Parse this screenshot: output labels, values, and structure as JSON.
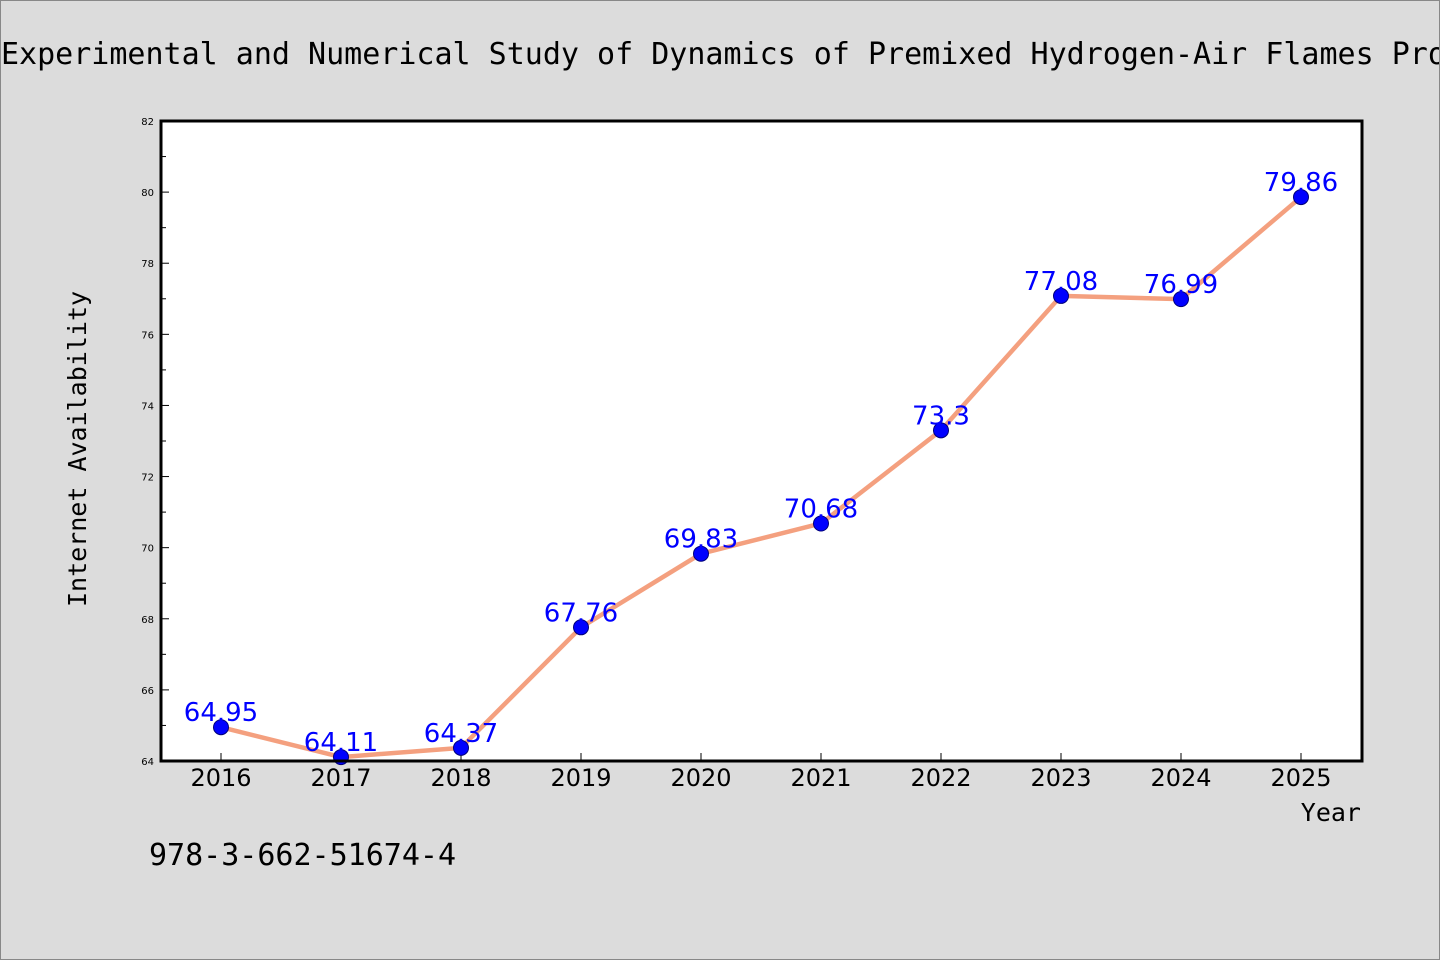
{
  "chart_data": {
    "type": "line",
    "title": "Experimental and Numerical Study of Dynamics of Premixed Hydrogen-Air Flames Propagating in Ducts",
    "xlabel": "Year",
    "ylabel": "Internet Availability",
    "categories": [
      "2016",
      "2017",
      "2018",
      "2019",
      "2020",
      "2021",
      "2022",
      "2023",
      "2024",
      "2025"
    ],
    "series": [
      {
        "values": [
          64.95,
          64.11,
          64.37,
          67.76,
          69.83,
          70.68,
          73.3,
          77.08,
          76.99,
          79.86
        ],
        "labels": [
          "64.95",
          "64.11",
          "64.37",
          "67.76",
          "69.83",
          "70.68",
          "73.3",
          "77.08",
          "76.99",
          "79.86"
        ]
      }
    ],
    "ylim": [
      64,
      82
    ],
    "yticks": [
      64,
      66,
      68,
      70,
      72,
      74,
      76,
      78,
      80,
      82
    ],
    "grid": false,
    "legend": "none",
    "colors": {
      "line": "#f4a07f",
      "marker": "#0000ff",
      "marker_edge": "#00007a",
      "data_label": "#0000ff",
      "background": "#dcdcdc",
      "plot_background": "#ffffff"
    }
  },
  "footnote": "978-3-662-51674-4"
}
